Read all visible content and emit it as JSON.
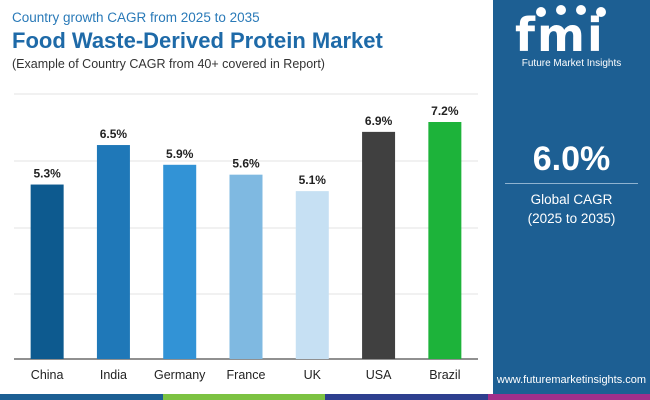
{
  "header": {
    "subtitle": "Country growth CAGR from 2025 to 2035",
    "title": "Food Waste-Derived Protein Market",
    "note": "(Example of Country CAGR from 40+ covered in Report)"
  },
  "chart_data": {
    "type": "bar",
    "categories": [
      "China",
      "India",
      "Germany",
      "France",
      "UK",
      "USA",
      "Brazil"
    ],
    "values": [
      5.3,
      6.5,
      5.9,
      5.6,
      5.1,
      6.9,
      7.2
    ],
    "labels": [
      "5.3%",
      "6.5%",
      "5.9%",
      "5.6%",
      "5.1%",
      "6.9%",
      "7.2%"
    ],
    "colors": [
      "#0d5a8f",
      "#1f78b8",
      "#3293d6",
      "#7fb9e1",
      "#c6e0f3",
      "#404040",
      "#1db33a"
    ],
    "ylim": [
      0,
      7.2
    ],
    "grid": true,
    "legend": "none",
    "xlabel": "",
    "ylabel": ""
  },
  "side_panel": {
    "logo_letters": "fmi",
    "logo_text": "Future Market Insights",
    "cagr_value": "6.0%",
    "cagr_label_line1": "Global CAGR",
    "cagr_label_line2": "(2025 to 2035)",
    "website": "www.futuremarketinsights.com"
  },
  "footer_colors": [
    "#1d5f93",
    "#7cc242",
    "#2e3f8f",
    "#a12f8b",
    "#1d5f93"
  ]
}
